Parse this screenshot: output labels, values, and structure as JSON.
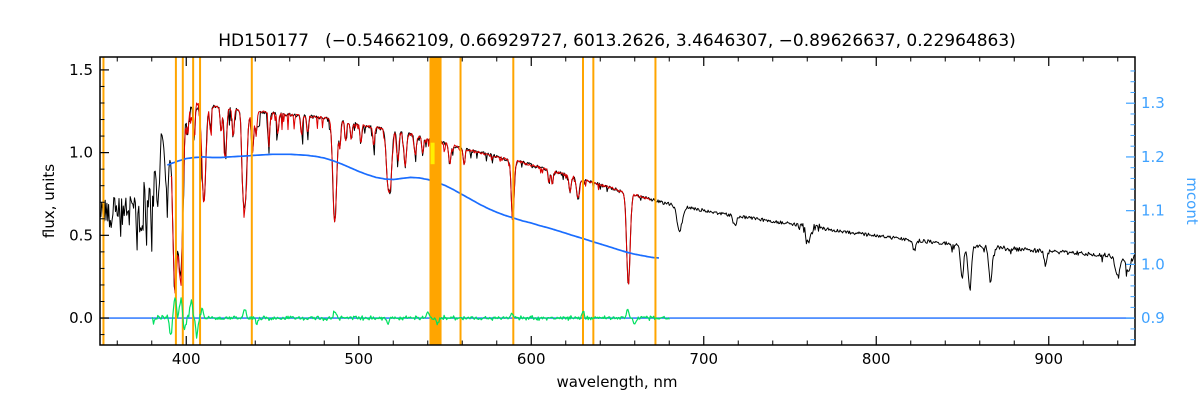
{
  "chart_data": {
    "type": "line",
    "title": "HD150177   (−0.54662109, 0.66929727, 6013.2626, 3.4646307, −0.89626637, 0.22964863)",
    "xlabel": "wavelength, nm",
    "ylabel_left": "flux, units",
    "ylabel_right": "mcont",
    "x_range": [
      350,
      950
    ],
    "x_ticks": [
      400,
      500,
      600,
      700,
      800,
      900
    ],
    "x_minor_step": 20,
    "flux_axis": {
      "ticks": [
        0.0,
        0.5,
        1.0,
        1.5
      ],
      "range": [
        -0.163,
        1.578
      ],
      "minor_step": 0.1
    },
    "mcont_axis": {
      "ticks": [
        0.9,
        1.0,
        1.1,
        1.2,
        1.3
      ],
      "range": [
        0.85,
        1.386
      ],
      "minor_step": 0.02
    },
    "grid": false,
    "legend": "none",
    "colors": {
      "spectrum": "#000000",
      "fit": "#dd0000",
      "mcont_curve": "#1a6dff",
      "mcont_axis": "#3fa2ff",
      "residual": "#00e060",
      "marker": "#ffa500",
      "highlight": "#ffee00",
      "zero_line": "#1a6dff",
      "frame": "#000000"
    },
    "marker_lines_nm": [
      352,
      394,
      398,
      404,
      408,
      438,
      559,
      589.6,
      630,
      636,
      672
    ],
    "marker_band_nm": [
      541,
      548
    ],
    "highlight_mark": {
      "nm": 542.8,
      "flux_from": 0.93,
      "flux_to": 1.06
    },
    "zero_line_flux": 0.0,
    "series": {
      "spectrum_envelope": [
        [
          350,
          0.62
        ],
        [
          354,
          0.645
        ],
        [
          358,
          0.66
        ],
        [
          362,
          0.68
        ],
        [
          366,
          0.71
        ],
        [
          370,
          0.74
        ],
        [
          374,
          0.78
        ],
        [
          377,
          0.85
        ],
        [
          380,
          0.97
        ],
        [
          383,
          1.1
        ],
        [
          386,
          1.17
        ],
        [
          389,
          1.22
        ],
        [
          393,
          1.25
        ],
        [
          397,
          1.26
        ],
        [
          401,
          1.27
        ],
        [
          405,
          1.285
        ],
        [
          410,
          1.29
        ],
        [
          415,
          1.28
        ],
        [
          420,
          1.27
        ],
        [
          425,
          1.265
        ],
        [
          430,
          1.26
        ],
        [
          435,
          1.255
        ],
        [
          440,
          1.25
        ],
        [
          445,
          1.245
        ],
        [
          450,
          1.24
        ],
        [
          455,
          1.235
        ],
        [
          460,
          1.23
        ],
        [
          465,
          1.225
        ],
        [
          470,
          1.22
        ],
        [
          475,
          1.215
        ],
        [
          480,
          1.21
        ],
        [
          485,
          1.2
        ],
        [
          490,
          1.19
        ],
        [
          495,
          1.18
        ],
        [
          500,
          1.17
        ],
        [
          505,
          1.16
        ],
        [
          510,
          1.15
        ],
        [
          515,
          1.14
        ],
        [
          520,
          1.13
        ],
        [
          525,
          1.12
        ],
        [
          530,
          1.11
        ],
        [
          535,
          1.095
        ],
        [
          540,
          1.08
        ],
        [
          545,
          1.07
        ],
        [
          550,
          1.055
        ],
        [
          555,
          1.04
        ],
        [
          560,
          1.025
        ],
        [
          565,
          1.01
        ],
        [
          570,
          1.0
        ],
        [
          575,
          0.99
        ],
        [
          580,
          0.975
        ],
        [
          585,
          0.96
        ],
        [
          590,
          0.95
        ],
        [
          595,
          0.94
        ],
        [
          600,
          0.925
        ],
        [
          605,
          0.91
        ],
        [
          610,
          0.895
        ],
        [
          615,
          0.88
        ],
        [
          620,
          0.865
        ],
        [
          625,
          0.85
        ],
        [
          630,
          0.835
        ],
        [
          635,
          0.82
        ],
        [
          640,
          0.805
        ],
        [
          645,
          0.79
        ],
        [
          650,
          0.775
        ],
        [
          655,
          0.76
        ],
        [
          660,
          0.745
        ],
        [
          665,
          0.73
        ],
        [
          670,
          0.715
        ],
        [
          675,
          0.7
        ],
        [
          680,
          0.69
        ],
        [
          685,
          0.68
        ],
        [
          690,
          0.67
        ],
        [
          695,
          0.66
        ],
        [
          700,
          0.65
        ],
        [
          710,
          0.632
        ],
        [
          720,
          0.615
        ],
        [
          730,
          0.6
        ],
        [
          740,
          0.585
        ],
        [
          750,
          0.57
        ],
        [
          760,
          0.555
        ],
        [
          770,
          0.54
        ],
        [
          780,
          0.525
        ],
        [
          790,
          0.51
        ],
        [
          800,
          0.497
        ],
        [
          810,
          0.485
        ],
        [
          820,
          0.473
        ],
        [
          830,
          0.462
        ],
        [
          840,
          0.452
        ],
        [
          850,
          0.443
        ],
        [
          860,
          0.434
        ],
        [
          870,
          0.426
        ],
        [
          880,
          0.418
        ],
        [
          890,
          0.41
        ],
        [
          900,
          0.403
        ],
        [
          910,
          0.396
        ],
        [
          920,
          0.39
        ],
        [
          930,
          0.384
        ],
        [
          940,
          0.378
        ],
        [
          950,
          0.372
        ]
      ],
      "absorption_lines": [
        [
          371,
          0.18,
          0.8
        ],
        [
          374,
          0.2,
          0.8
        ],
        [
          377,
          0.22,
          0.8
        ],
        [
          380,
          0.3,
          0.9
        ],
        [
          383.5,
          0.42,
          1.0
        ],
        [
          388.9,
          0.5,
          1.1
        ],
        [
          393.4,
          1.05,
          1.3
        ],
        [
          396.8,
          0.98,
          1.3
        ],
        [
          401,
          0.15,
          0.5
        ],
        [
          404.6,
          0.2,
          0.5
        ],
        [
          410.2,
          0.6,
          1.1
        ],
        [
          414,
          0.15,
          0.5
        ],
        [
          420.2,
          0.15,
          0.5
        ],
        [
          422.7,
          0.3,
          0.7
        ],
        [
          427.2,
          0.18,
          0.5
        ],
        [
          432.6,
          0.2,
          0.6
        ],
        [
          434.0,
          0.58,
          1.1
        ],
        [
          438.4,
          0.25,
          0.7
        ],
        [
          440.5,
          0.15,
          0.5
        ],
        [
          448.1,
          0.12,
          0.5
        ],
        [
          453.1,
          0.12,
          0.5
        ],
        [
          466.8,
          0.12,
          0.5
        ],
        [
          470.3,
          0.1,
          0.5
        ],
        [
          486.1,
          0.62,
          1.1
        ],
        [
          489.1,
          0.15,
          0.5
        ],
        [
          492.4,
          0.12,
          0.5
        ],
        [
          495.7,
          0.1,
          0.5
        ],
        [
          501.2,
          0.12,
          0.5
        ],
        [
          508.7,
          0.12,
          0.5
        ],
        [
          516.7,
          0.28,
          0.9
        ],
        [
          518.4,
          0.3,
          0.9
        ],
        [
          522.7,
          0.15,
          0.6
        ],
        [
          526.9,
          0.2,
          0.7
        ],
        [
          532.8,
          0.12,
          0.6
        ],
        [
          537.1,
          0.1,
          0.5
        ],
        [
          543,
          0.1,
          0.5
        ],
        [
          552.8,
          0.12,
          0.6
        ],
        [
          561.1,
          0.1,
          0.5
        ],
        [
          588.9,
          0.22,
          0.7
        ],
        [
          589.6,
          0.2,
          0.7
        ],
        [
          610.3,
          0.08,
          0.5
        ],
        [
          612.2,
          0.08,
          0.5
        ],
        [
          622.5,
          0.1,
          0.6
        ],
        [
          627,
          0.12,
          0.8
        ],
        [
          656.3,
          0.56,
          1.0
        ],
        [
          686,
          0.15,
          1.5
        ],
        [
          718,
          0.06,
          1.0
        ],
        [
          760.5,
          0.12,
          1.2
        ],
        [
          822,
          0.06,
          1.0
        ],
        [
          849.8,
          0.2,
          0.9
        ],
        [
          854.2,
          0.26,
          1.0
        ],
        [
          866.2,
          0.22,
          0.9
        ],
        [
          898,
          0.08,
          0.8
        ],
        [
          940,
          0.12,
          1.5
        ],
        [
          946,
          0.1,
          1.2
        ]
      ],
      "noise_zones": [
        [
          350,
          378,
          0.1
        ],
        [
          378,
          390,
          0.05
        ],
        [
          390,
          410,
          0.025
        ],
        [
          410,
          700,
          0.01
        ],
        [
          700,
          755,
          0.01
        ],
        [
          755,
          768,
          0.03
        ],
        [
          768,
          850,
          0.011
        ],
        [
          850,
          950,
          0.013
        ]
      ],
      "forest": [
        [
          352,
          385,
          0.22,
          0.3
        ],
        [
          385,
          480,
          0.12,
          0.22
        ],
        [
          480,
          560,
          0.07,
          0.18
        ],
        [
          560,
          650,
          0.045,
          0.15
        ],
        [
          650,
          680,
          0.03,
          0.1
        ],
        [
          830,
          880,
          0.05,
          0.12
        ],
        [
          930,
          950,
          0.06,
          0.15
        ]
      ],
      "fit_range_nm": [
        391,
        669
      ],
      "mcont_curve": [
        [
          389,
          1.185
        ],
        [
          395,
          1.192
        ],
        [
          400,
          1.197
        ],
        [
          405,
          1.199
        ],
        [
          410,
          1.2
        ],
        [
          415,
          1.199
        ],
        [
          420,
          1.199
        ],
        [
          425,
          1.2
        ],
        [
          430,
          1.201
        ],
        [
          435,
          1.202
        ],
        [
          440,
          1.203
        ],
        [
          445,
          1.204
        ],
        [
          450,
          1.205
        ],
        [
          455,
          1.205
        ],
        [
          460,
          1.205
        ],
        [
          465,
          1.204
        ],
        [
          470,
          1.203
        ],
        [
          475,
          1.201
        ],
        [
          480,
          1.198
        ],
        [
          485,
          1.193
        ],
        [
          490,
          1.187
        ],
        [
          495,
          1.18
        ],
        [
          500,
          1.173
        ],
        [
          505,
          1.167
        ],
        [
          510,
          1.162
        ],
        [
          515,
          1.159
        ],
        [
          520,
          1.158
        ],
        [
          525,
          1.16
        ],
        [
          530,
          1.162
        ],
        [
          535,
          1.161
        ],
        [
          540,
          1.158
        ],
        [
          545,
          1.153
        ],
        [
          550,
          1.147
        ],
        [
          555,
          1.139
        ],
        [
          560,
          1.13
        ],
        [
          565,
          1.121
        ],
        [
          570,
          1.112
        ],
        [
          575,
          1.104
        ],
        [
          580,
          1.097
        ],
        [
          585,
          1.091
        ],
        [
          590,
          1.086
        ],
        [
          595,
          1.081
        ],
        [
          600,
          1.077
        ],
        [
          605,
          1.072
        ],
        [
          610,
          1.068
        ],
        [
          615,
          1.063
        ],
        [
          620,
          1.058
        ],
        [
          625,
          1.053
        ],
        [
          630,
          1.048
        ],
        [
          635,
          1.043
        ],
        [
          640,
          1.038
        ],
        [
          645,
          1.033
        ],
        [
          650,
          1.028
        ],
        [
          655,
          1.023
        ],
        [
          660,
          1.019
        ],
        [
          665,
          1.016
        ],
        [
          670,
          1.013
        ],
        [
          674,
          1.012
        ]
      ],
      "residual_range_nm": [
        380,
        680
      ],
      "residual_spikes": [
        [
          391,
          -0.1
        ],
        [
          393.5,
          0.13
        ],
        [
          397,
          0.12
        ],
        [
          399,
          -0.07
        ],
        [
          403,
          0.1
        ],
        [
          406,
          -0.1
        ],
        [
          409,
          0.06
        ],
        [
          434,
          0.05
        ],
        [
          441,
          -0.04
        ],
        [
          486,
          0.04
        ],
        [
          517,
          -0.03
        ],
        [
          540,
          0.04
        ],
        [
          546,
          -0.04
        ],
        [
          589,
          0.03
        ],
        [
          630,
          0.04
        ],
        [
          656,
          0.05
        ],
        [
          660,
          -0.04
        ]
      ]
    }
  }
}
